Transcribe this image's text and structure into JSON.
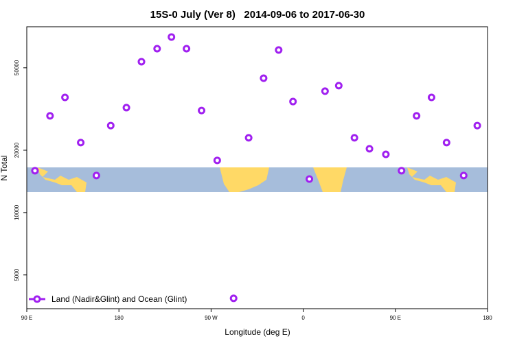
{
  "chart_data": {
    "type": "scatter",
    "title": "15S-0 July (Ver 8)   2014-09-06 to 2017-06-30",
    "x_label": "Longitude (deg E)",
    "y_label": "N Total",
    "log_y": true,
    "xlim": [
      90,
      540
    ],
    "xticks": [
      {
        "value": 90,
        "label": "90 E"
      },
      180,
      {
        "value": 270,
        "label": "90 W"
      },
      {
        "value": 360,
        "label": "0"
      },
      {
        "value": 450,
        "label": "90 E"
      },
      {
        "value": 540,
        "label": "180"
      }
    ],
    "ylim": [
      3435,
      78900
    ],
    "yticks": [
      5000,
      10000,
      20000,
      50000
    ],
    "legend": "bottom-left",
    "series": [
      {
        "name": "Land (Nadir&Glint) and Ocean (Glint)",
        "color": "#a020f0",
        "x": [
          98,
          112.7,
          127.3,
          142.7,
          158,
          172,
          187.3,
          202,
          217.3,
          231.3,
          246,
          260.7,
          276,
          292,
          306.7,
          321.3,
          336,
          350,
          366,
          381.3,
          394.7,
          410,
          424.7,
          440.7,
          456,
          470.7,
          485.3,
          500,
          516.7,
          530
        ],
        "values": [
          15920,
          29300,
          35970,
          21770,
          15100,
          26300,
          32100,
          53500,
          61800,
          70400,
          61800,
          31100,
          17860,
          3855,
          22960,
          44550,
          60950,
          34350,
          14520,
          38550,
          41000,
          22960,
          20320,
          19100,
          15920,
          29300,
          35970,
          21770,
          15100,
          26300
        ]
      }
    ]
  }
}
